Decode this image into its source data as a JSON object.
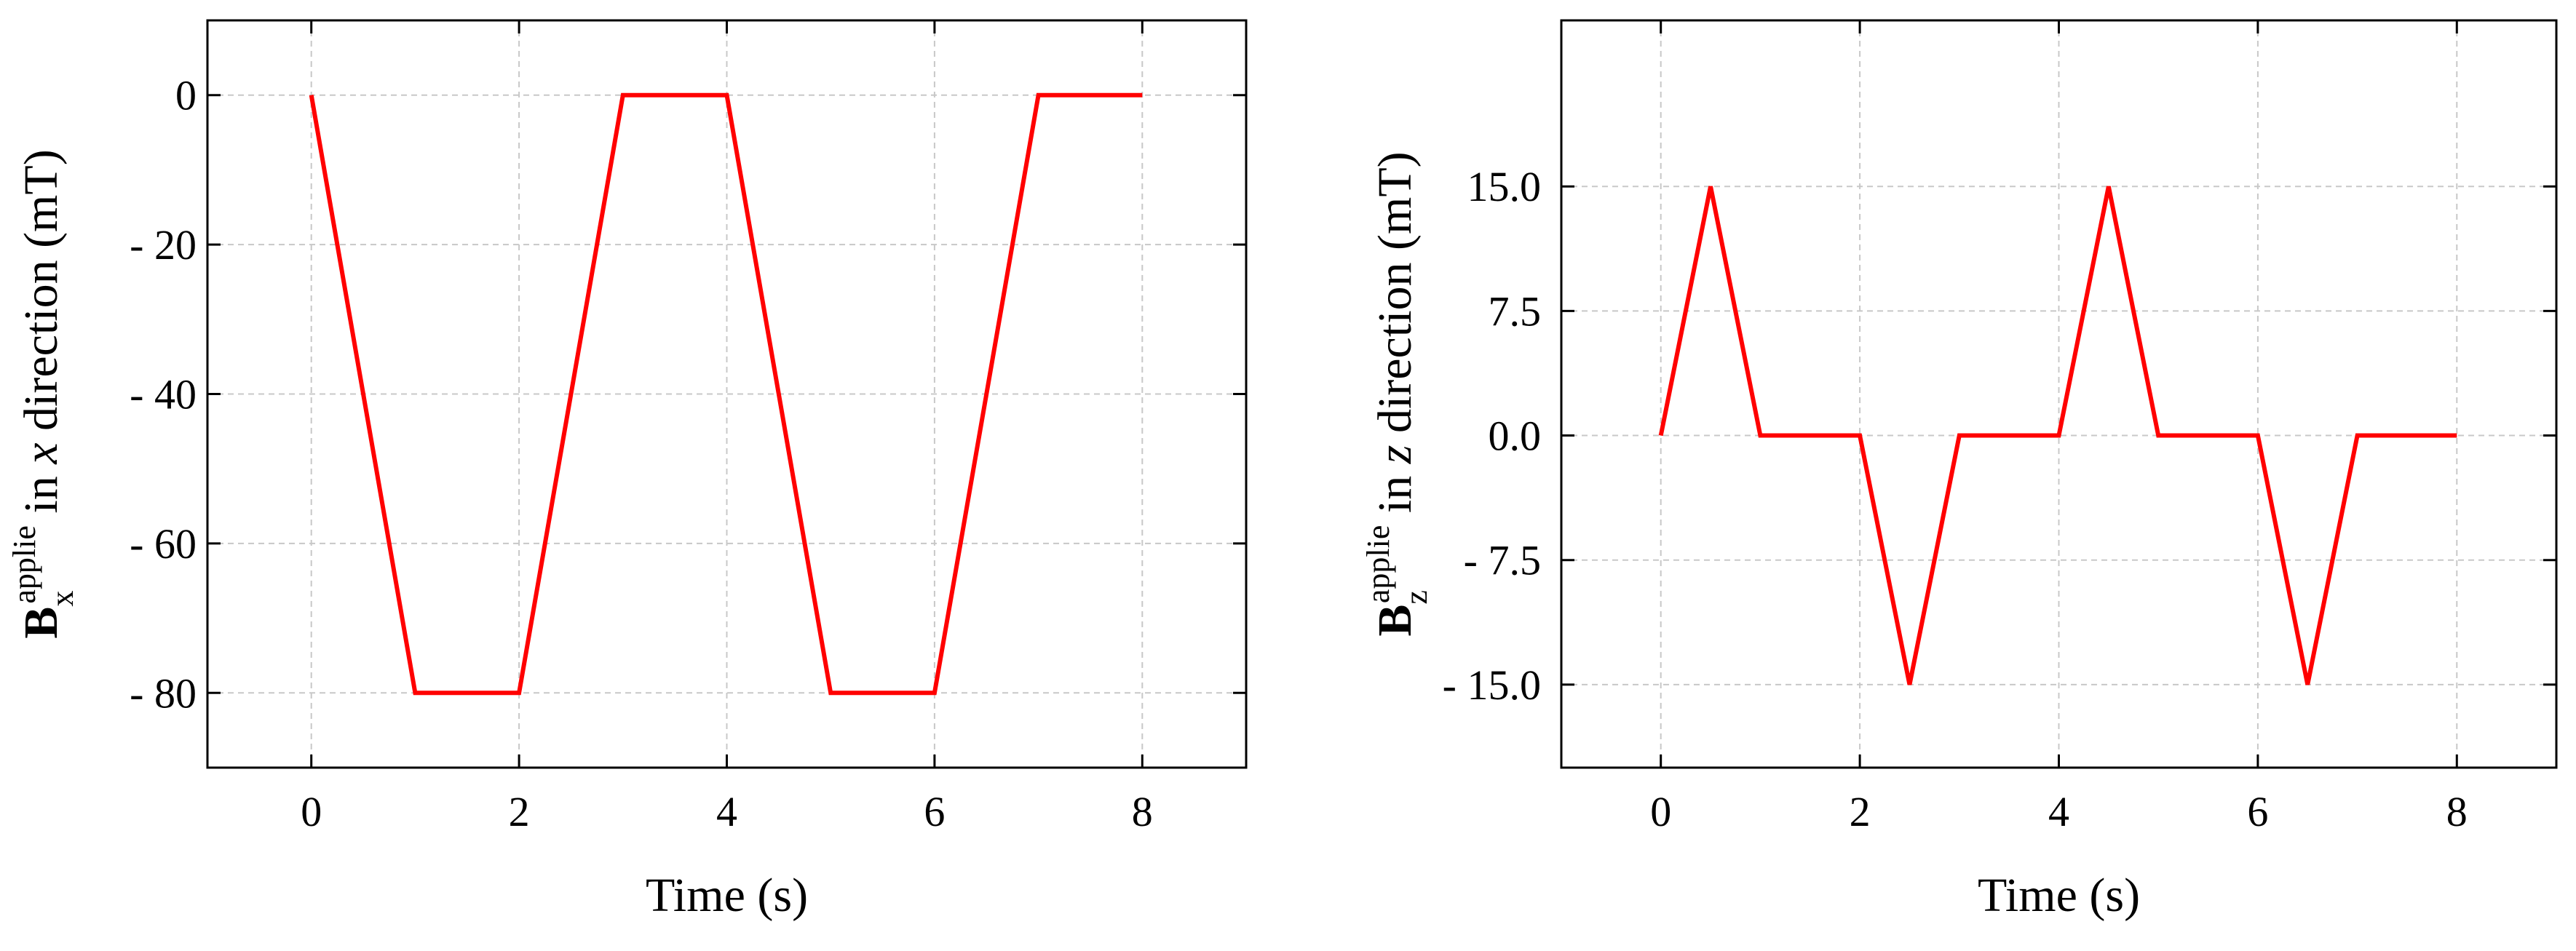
{
  "chart_data": [
    {
      "type": "line",
      "xlabel": "Time (s)",
      "ylabel": {
        "base": "B",
        "superscript": "applie",
        "subscript": "x",
        "prefix": "in",
        "variable": "x",
        "suffix": "direction (mT)"
      },
      "xlim": [
        -1,
        9
      ],
      "ylim": [
        -90,
        10
      ],
      "xticks": [
        0,
        2,
        4,
        6,
        8
      ],
      "xtick_labels": [
        "0",
        "2",
        "4",
        "6",
        "8"
      ],
      "yticks": [
        0,
        -20,
        -40,
        -60,
        -80
      ],
      "ytick_labels": [
        "0",
        "- 20",
        "- 40",
        "- 60",
        "- 80"
      ],
      "grid": true,
      "series": [
        {
          "color": "#ff0000",
          "x": [
            0,
            1,
            2,
            3,
            4,
            5,
            6,
            7,
            8
          ],
          "y": [
            0,
            -80,
            -80,
            0,
            0,
            -80,
            -80,
            0,
            0
          ]
        }
      ]
    },
    {
      "type": "line",
      "xlabel": "Time (s)",
      "ylabel": {
        "base": "B",
        "superscript": "applie",
        "subscript": "z",
        "prefix": "in",
        "variable": "z",
        "suffix": "direction (mT)"
      },
      "xlim": [
        -1,
        9
      ],
      "ylim": [
        -20,
        25
      ],
      "xticks": [
        0,
        2,
        4,
        6,
        8
      ],
      "xtick_labels": [
        "0",
        "2",
        "4",
        "6",
        "8"
      ],
      "yticks": [
        15,
        7.5,
        0,
        -7.5,
        -15
      ],
      "ytick_labels": [
        "15.0",
        "7.5",
        "0.0",
        "- 7.5",
        "- 15.0"
      ],
      "grid": true,
      "series": [
        {
          "color": "#ff0000",
          "x": [
            0,
            0.5,
            1,
            2,
            2.5,
            3,
            4,
            4.5,
            5,
            6,
            6.5,
            7,
            8
          ],
          "y": [
            0,
            15,
            0,
            0,
            -15,
            0,
            0,
            15,
            0,
            0,
            -15,
            0,
            0
          ]
        }
      ]
    }
  ]
}
